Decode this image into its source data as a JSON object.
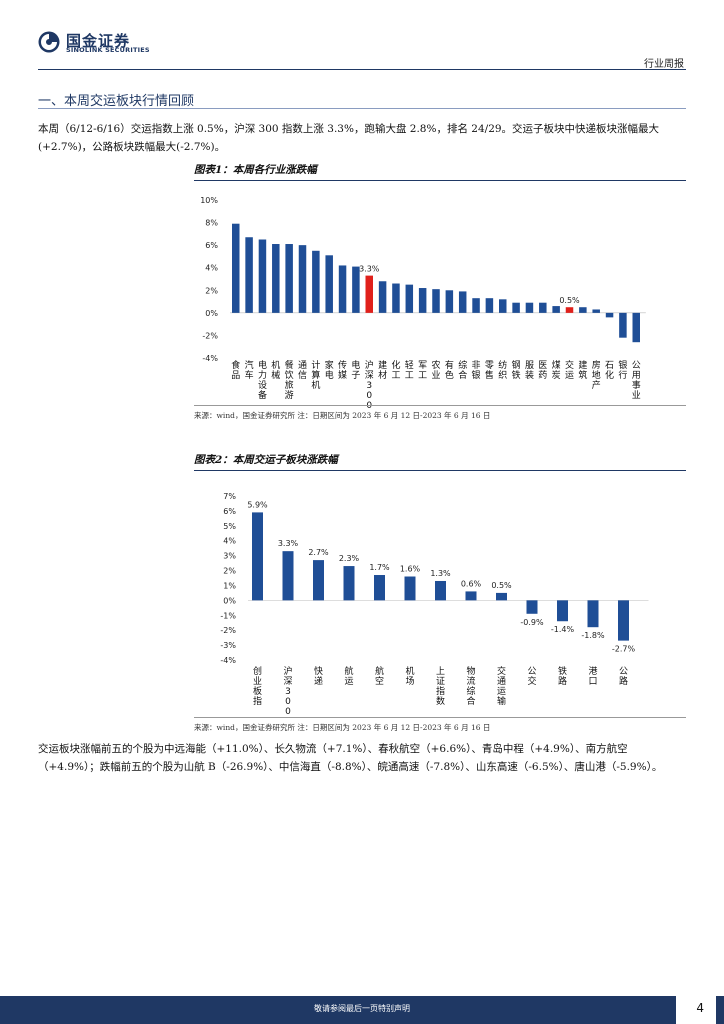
{
  "header": {
    "logo_cn": "国金证券",
    "logo_en": "SINOLINK SECURITIES",
    "report_type": "行业周报",
    "brand_color": "#1f3864"
  },
  "section": {
    "title": "一、本周交运板块行情回顾"
  },
  "paragraph1": "本周（6/12-6/16）交运指数上涨 0.5%，沪深 300 指数上涨 3.3%，跑输大盘 2.8%，排名 24/29。交运子板块中快递板块涨幅最大(+2.7%)，公路板块跌幅最大(-2.7%)。",
  "figure1": {
    "title": "图表1：本周各行业涨跌幅",
    "source": "来源：wind，国金证券研究所   注：日期区间为 2023 年 6 月 12 日-2023 年 6 月 16 日"
  },
  "figure2": {
    "title": "图表2：本周交运子板块涨跌幅",
    "source": "来源：wind，国金证券研究所   注：日期区间为 2023 年 6 月 12 日-2023 年 6 月 16 日"
  },
  "paragraph2": "交运板块涨幅前五的个股为中远海能（+11.0%）、长久物流（+7.1%）、春秋航空（+6.6%）、青岛中程（+4.9%）、南方航空（+4.9%）；跌幅前五的个股为山航 B（-26.9%）、中信海直（-8.8%）、皖通高速（-7.8%）、山东高速（-6.5%）、唐山港（-5.9%）。",
  "footer": {
    "disclaimer": "敬请参阅最后一页特别声明",
    "page_number": "4"
  },
  "chart_data": [
    {
      "type": "bar",
      "categories": [
        "食品",
        "汽车",
        "电力设备",
        "机械",
        "餐饮旅游",
        "通信",
        "计算机",
        "家电",
        "传媒",
        "电子",
        "沪深300",
        "建材",
        "化工",
        "轻工",
        "军工",
        "农业",
        "有色",
        "综合",
        "非银",
        "零售",
        "纺织",
        "钢铁",
        "服装",
        "医药",
        "煤炭",
        "交运",
        "建筑",
        "房地产",
        "石化",
        "银行",
        "公用事业"
      ],
      "values": [
        7.9,
        6.7,
        6.5,
        6.1,
        6.1,
        6.0,
        5.5,
        5.1,
        4.2,
        4.1,
        3.3,
        2.8,
        2.6,
        2.5,
        2.2,
        2.1,
        2.0,
        1.9,
        1.3,
        1.3,
        1.2,
        0.9,
        0.9,
        0.9,
        0.6,
        0.5,
        0.5,
        0.3,
        -0.4,
        -2.2,
        -2.6
      ],
      "highlight": [
        "沪深300",
        "交运"
      ],
      "data_labels": {
        "沪深300": "3.3%",
        "交运": "0.5%"
      },
      "ylim": [
        -4,
        10
      ],
      "yticks": [
        "10%",
        "8%",
        "6%",
        "4%",
        "2%",
        "0%",
        "-2%",
        "-4%"
      ],
      "bar_color": "#1f4e96",
      "highlight_color": "#e0201b",
      "grid": false
    },
    {
      "type": "bar",
      "categories": [
        "创业板指",
        "沪深300",
        "快递",
        "航运",
        "航空",
        "机场",
        "上证指数",
        "物流综合",
        "交通运输",
        "公交",
        "铁路",
        "港口",
        "公路"
      ],
      "values": [
        5.9,
        3.3,
        2.7,
        2.3,
        1.7,
        1.6,
        1.3,
        0.6,
        0.5,
        -0.9,
        -1.4,
        -1.8,
        -2.7
      ],
      "data_labels": [
        "5.9%",
        "3.3%",
        "2.7%",
        "2.3%",
        "1.7%",
        "1.6%",
        "1.3%",
        "0.6%",
        "0.5%",
        "-0.9%",
        "-1.4%",
        "-1.8%",
        "-2.7%"
      ],
      "ylim": [
        -4,
        7
      ],
      "yticks": [
        "7%",
        "6%",
        "5%",
        "4%",
        "3%",
        "2%",
        "1%",
        "0%",
        "-1%",
        "-2%",
        "-3%",
        "-4%"
      ],
      "bar_color": "#1f4e96",
      "grid": false
    }
  ]
}
